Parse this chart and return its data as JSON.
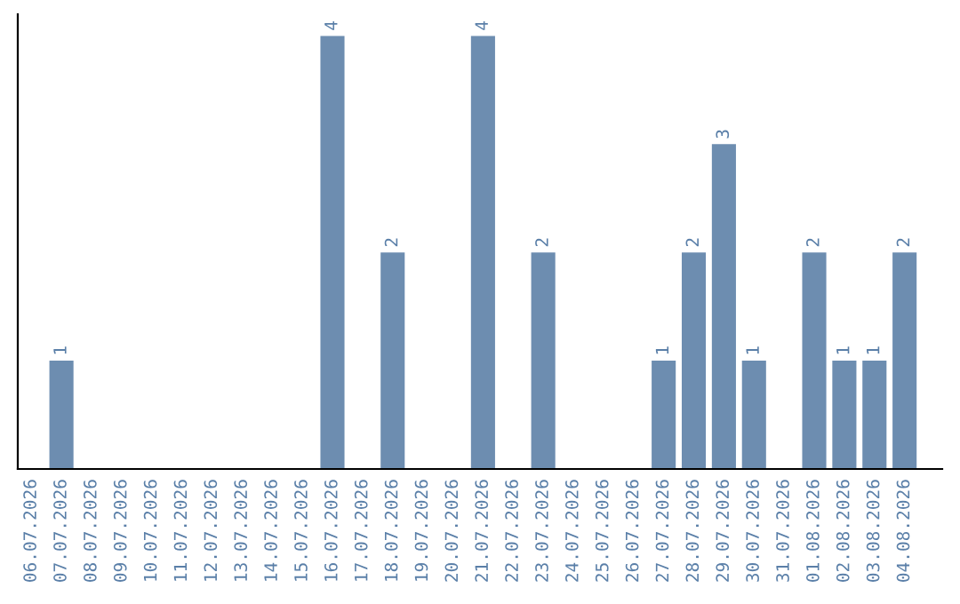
{
  "chart_data": {
    "type": "bar",
    "categories": [
      "06.07.2026",
      "07.07.2026",
      "08.07.2026",
      "09.07.2026",
      "10.07.2026",
      "11.07.2026",
      "12.07.2026",
      "13.07.2026",
      "14.07.2026",
      "15.07.2026",
      "16.07.2026",
      "17.07.2026",
      "18.07.2026",
      "19.07.2026",
      "20.07.2026",
      "21.07.2026",
      "22.07.2026",
      "23.07.2026",
      "24.07.2026",
      "25.07.2026",
      "26.07.2026",
      "27.07.2026",
      "28.07.2026",
      "29.07.2026",
      "30.07.2026",
      "31.07.2026",
      "01.08.2026",
      "02.08.2026",
      "03.08.2026",
      "04.08.2026"
    ],
    "values": [
      null,
      1,
      null,
      null,
      null,
      null,
      null,
      null,
      null,
      null,
      4,
      null,
      2,
      null,
      null,
      4,
      null,
      2,
      null,
      null,
      null,
      1,
      2,
      3,
      1,
      null,
      2,
      1,
      1,
      2
    ],
    "color": "#6d8db0",
    "data_labels": true,
    "grid": false,
    "legend": false
  }
}
